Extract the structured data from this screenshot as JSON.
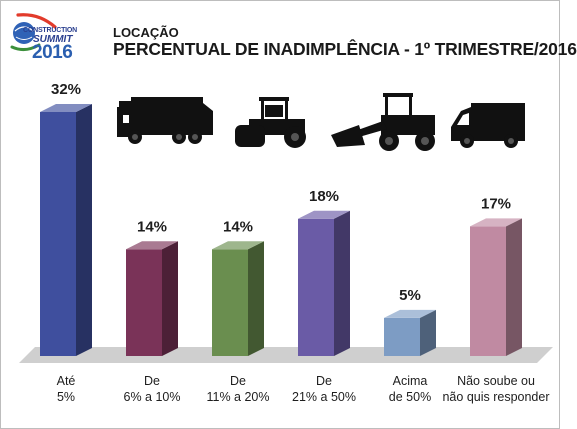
{
  "header": {
    "logo": {
      "line1": "CONSTRUCTION",
      "line2": "SUMMIT",
      "year": "2016"
    },
    "subtitle": "LOCAÇÃO",
    "title": "PERCENTUAL DE INADIMPLÊNCIA - 1º TRIMESTRE/2016"
  },
  "icons": [
    "compactor-truck-icon",
    "road-roller-icon",
    "wheel-loader-icon",
    "van-icon"
  ],
  "chart_data": {
    "type": "bar",
    "title": "PERCENTUAL DE INADIMPLÊNCIA - 1º TRIMESTRE/2016",
    "categories": [
      [
        "Até",
        "5%"
      ],
      [
        "De",
        "6% a 10%"
      ],
      [
        "De",
        "11% a 20%"
      ],
      [
        "De",
        "21% a 50%"
      ],
      [
        "Acima",
        "de 50%"
      ],
      [
        "Não soube ou",
        "não quis responder"
      ]
    ],
    "values": [
      32,
      14,
      14,
      18,
      5,
      17
    ],
    "value_labels": [
      "32%",
      "14%",
      "14%",
      "18%",
      "5%",
      "17%"
    ],
    "colors": [
      "#3f4f9e",
      "#7a3358",
      "#6a8e4f",
      "#6a5ba6",
      "#7d9cc4",
      "#c08aa2"
    ],
    "ylim": [
      0,
      32
    ],
    "grid": false
  }
}
